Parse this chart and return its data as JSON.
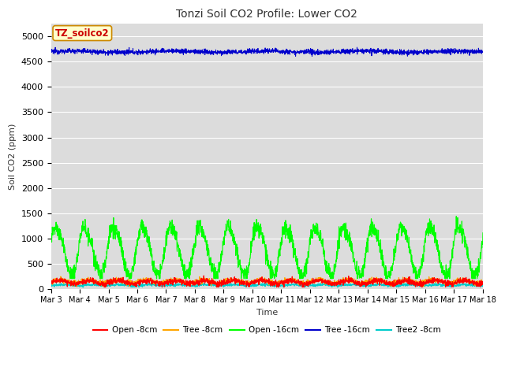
{
  "title": "Tonzi Soil CO2 Profile: Lower CO2",
  "ylabel": "Soil CO2 (ppm)",
  "xlabel": "Time",
  "ylim": [
    0,
    5250
  ],
  "yticks": [
    0,
    500,
    1000,
    1500,
    2000,
    2500,
    3000,
    3500,
    4000,
    4500,
    5000
  ],
  "plot_bg": "#dcdcdc",
  "fig_bg": "#ffffff",
  "legend_box_label": "TZ_soilco2",
  "legend_box_facecolor": "#ffffcc",
  "legend_box_edgecolor": "#cc8800",
  "series": [
    {
      "label": "Open -8cm",
      "color": "#ff0000"
    },
    {
      "label": "Tree -8cm",
      "color": "#ffa500"
    },
    {
      "label": "Open -16cm",
      "color": "#00ff00"
    },
    {
      "label": "Tree -16cm",
      "color": "#0000cc"
    },
    {
      "label": "Tree2 -8cm",
      "color": "#00cccc"
    }
  ],
  "n_points": 2160,
  "days": 15,
  "start_day": 3,
  "figsize": [
    6.4,
    4.8
  ],
  "dpi": 100
}
